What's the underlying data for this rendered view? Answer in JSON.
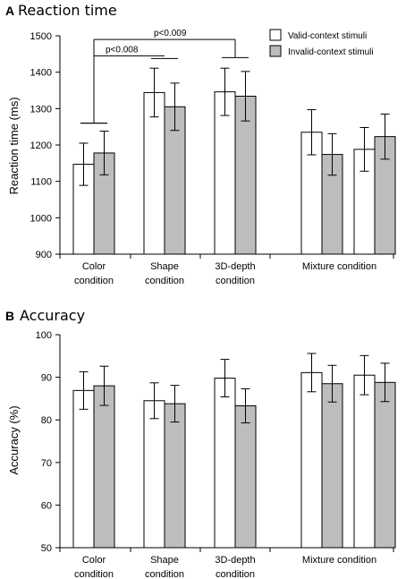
{
  "colors": {
    "valid": "#ffffff",
    "invalid": "#bdbdbd",
    "stroke": "#000000"
  },
  "legend": {
    "placement": "top-right"
  },
  "chart_data": [
    {
      "type": "bar",
      "panel_letter": "A",
      "title": "Reaction time",
      "ylabel": "Reaction time (ms)",
      "xlabel": "",
      "ylim": [
        900,
        1500
      ],
      "yticks": [
        900,
        1000,
        1100,
        1200,
        1300,
        1400,
        1500
      ],
      "categories": [
        {
          "lines": [
            "Color",
            "condition"
          ]
        },
        {
          "lines": [
            "Shape",
            "condition"
          ]
        },
        {
          "lines": [
            "3D-depth",
            "condition"
          ]
        },
        {
          "lines": [
            "Mixture condition"
          ]
        },
        {
          "lines": []
        }
      ],
      "series": [
        {
          "name": "Valid-context stimuli",
          "values": [
            1147,
            1344,
            1346,
            1235,
            1188
          ],
          "errors": [
            58,
            67,
            65,
            62,
            60
          ]
        },
        {
          "name": "Invalid-context stimuli",
          "values": [
            1178,
            1305,
            1334,
            1174,
            1223
          ],
          "errors": [
            60,
            65,
            68,
            57,
            62
          ]
        }
      ],
      "annotations": [
        {
          "label": "p<0.008",
          "from": 0,
          "to": 1
        },
        {
          "label": "p<0.009",
          "from": 0,
          "to": 2
        }
      ],
      "grid": false
    },
    {
      "type": "bar",
      "panel_letter": "B",
      "title": "Accuracy",
      "ylabel": "Accuracy (%)",
      "xlabel": "",
      "ylim": [
        50,
        100
      ],
      "yticks": [
        50,
        60,
        70,
        80,
        90,
        100
      ],
      "categories": [
        {
          "lines": [
            "Color",
            "condition"
          ]
        },
        {
          "lines": [
            "Shape",
            "condition"
          ]
        },
        {
          "lines": [
            "3D-depth",
            "condition"
          ]
        },
        {
          "lines": [
            "Mixture condition"
          ]
        },
        {
          "lines": []
        }
      ],
      "series": [
        {
          "name": "Valid-context stimuli",
          "values": [
            86.9,
            84.5,
            89.8,
            91.1,
            90.5
          ],
          "errors": [
            4.4,
            4.2,
            4.4,
            4.5,
            4.6
          ]
        },
        {
          "name": "Invalid-context stimuli",
          "values": [
            88.0,
            83.8,
            83.3,
            88.5,
            88.8
          ],
          "errors": [
            4.6,
            4.3,
            4.0,
            4.3,
            4.5
          ]
        }
      ],
      "grid": false
    }
  ]
}
